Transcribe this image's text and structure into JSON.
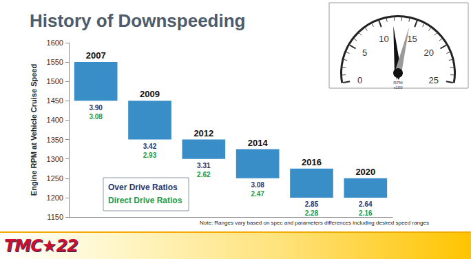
{
  "chart_data": {
    "type": "floating_bar",
    "title": "History of Downspeeding",
    "y_label": "Engine RPM at Vehicle Cruise Speed",
    "categories": [
      "2007",
      "2009",
      "2012",
      "2014",
      "2016",
      "2020"
    ],
    "low": [
      1450,
      1350,
      1300,
      1250,
      1200,
      1200
    ],
    "high": [
      1550,
      1450,
      1350,
      1325,
      1275,
      1250
    ],
    "color": "#3a8ec8",
    "ylim": [
      1150,
      1600
    ],
    "yticks": [
      1150,
      1200,
      1250,
      1300,
      1350,
      1400,
      1450,
      1500,
      1550,
      1600
    ],
    "grid": false,
    "ratios": [
      {
        "name": "Over Drive Ratios",
        "color": "#1f3a6e",
        "values": [
          3.9,
          3.42,
          3.31,
          3.08,
          2.85,
          2.64
        ],
        "value_labels": [
          "3.90",
          "3.42",
          "3.31",
          "3.08",
          "2.85",
          "2.64"
        ]
      },
      {
        "name": "Direct Drive Ratios",
        "color": "#1a9b4a",
        "values": [
          3.08,
          2.93,
          2.62,
          2.47,
          2.28,
          2.16
        ],
        "value_labels": [
          "3.08",
          "2.93",
          "2.62",
          "2.47",
          "2.28",
          "2.16"
        ]
      }
    ],
    "note": "Note: Ranges vary based on spec and parameters differences including desired speed ranges",
    "gauge": {
      "min": 0,
      "max": 25,
      "ticks": [
        0,
        5,
        10,
        15,
        20,
        25
      ],
      "unit_label": [
        "RPM",
        "x100"
      ],
      "needles": [
        {
          "value": 11.8,
          "color": "#111111"
        },
        {
          "value": 14.2,
          "color": "#9a9a9a"
        }
      ]
    }
  },
  "logo": "TMC★22"
}
